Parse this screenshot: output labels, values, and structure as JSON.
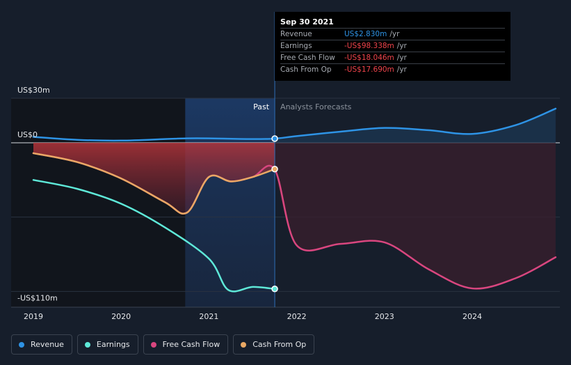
{
  "chart_data": {
    "type": "line",
    "x_range": [
      2018.75,
      2024.95
    ],
    "ylim": [
      -110,
      30
    ],
    "y_tick_labels": [
      {
        "value": 30,
        "label": "US$30m"
      },
      {
        "value": 0,
        "label": "US$0"
      },
      {
        "value": -110,
        "label": "-US$110m"
      }
    ],
    "x_ticks": [
      {
        "value": 2019,
        "label": "2019"
      },
      {
        "value": 2020,
        "label": "2020"
      },
      {
        "value": 2021,
        "label": "2021"
      },
      {
        "value": 2022,
        "label": "2022"
      },
      {
        "value": 2023,
        "label": "2023"
      },
      {
        "value": 2024,
        "label": "2024"
      }
    ],
    "past_label": "Past",
    "forecast_label": "Analysts Forecasts",
    "divider_x": 2021.75,
    "highlight_start_x": 2020.73,
    "series": [
      {
        "key": "revenue",
        "name": "Revenue",
        "color": "#2e93e5",
        "points": [
          [
            2019,
            4
          ],
          [
            2019.5,
            2
          ],
          [
            2020,
            1.5
          ],
          [
            2020.5,
            2.5
          ],
          [
            2020.75,
            3
          ],
          [
            2021,
            3
          ],
          [
            2021.5,
            2.5
          ],
          [
            2021.75,
            2.83
          ],
          [
            2022,
            4.5
          ],
          [
            2022.5,
            7.5
          ],
          [
            2023,
            10
          ],
          [
            2023.5,
            8.5
          ],
          [
            2024,
            6
          ],
          [
            2024.5,
            12
          ],
          [
            2024.95,
            23
          ]
        ]
      },
      {
        "key": "earnings",
        "name": "Earnings",
        "color": "#5ee8d8",
        "points": [
          [
            2019,
            -25
          ],
          [
            2019.5,
            -31
          ],
          [
            2020,
            -41
          ],
          [
            2020.5,
            -57
          ],
          [
            2021,
            -78
          ],
          [
            2021.22,
            -99
          ],
          [
            2021.5,
            -97
          ],
          [
            2021.75,
            -98.338
          ]
        ]
      },
      {
        "key": "fcf",
        "name": "Free Cash Flow",
        "color": "#d9467f",
        "points": [
          [
            2019,
            -7
          ],
          [
            2019.5,
            -13
          ],
          [
            2020,
            -24
          ],
          [
            2020.5,
            -40
          ],
          [
            2020.75,
            -47
          ],
          [
            2021,
            -23
          ],
          [
            2021.25,
            -26
          ],
          [
            2021.5,
            -23
          ],
          [
            2021.75,
            -18.046
          ],
          [
            2022,
            -69
          ],
          [
            2022.5,
            -68
          ],
          [
            2023,
            -67
          ],
          [
            2023.5,
            -85
          ],
          [
            2024,
            -98
          ],
          [
            2024.5,
            -91
          ],
          [
            2024.95,
            -77
          ]
        ]
      },
      {
        "key": "cfo",
        "name": "Cash From Op",
        "color": "#e9a864",
        "points": [
          [
            2019,
            -7
          ],
          [
            2019.5,
            -13
          ],
          [
            2020,
            -24
          ],
          [
            2020.5,
            -40
          ],
          [
            2020.75,
            -47
          ],
          [
            2021,
            -23
          ],
          [
            2021.25,
            -26
          ],
          [
            2021.5,
            -23
          ],
          [
            2021.75,
            -17.69
          ]
        ]
      }
    ],
    "markers": [
      {
        "series": "revenue",
        "x": 2021.75,
        "y": 2.83
      },
      {
        "series": "earnings",
        "x": 2021.75,
        "y": -98.338
      },
      {
        "series": "cfo",
        "x": 2021.75,
        "y": -17.69
      }
    ]
  },
  "tooltip": {
    "date": "Sep 30 2021",
    "rows": [
      {
        "label": "Revenue",
        "value": "US$2.830m",
        "unit": "/yr",
        "color": "#2e93e5"
      },
      {
        "label": "Earnings",
        "value": "-US$98.338m",
        "unit": "/yr",
        "color": "#f0444b"
      },
      {
        "label": "Free Cash Flow",
        "value": "-US$18.046m",
        "unit": "/yr",
        "color": "#f0444b"
      },
      {
        "label": "Cash From Op",
        "value": "-US$17.690m",
        "unit": "/yr",
        "color": "#f0444b"
      }
    ]
  },
  "legend": [
    {
      "label": "Revenue",
      "color": "#2e93e5"
    },
    {
      "label": "Earnings",
      "color": "#5ee8d8"
    },
    {
      "label": "Free Cash Flow",
      "color": "#d9467f"
    },
    {
      "label": "Cash From Op",
      "color": "#e9a864"
    }
  ]
}
